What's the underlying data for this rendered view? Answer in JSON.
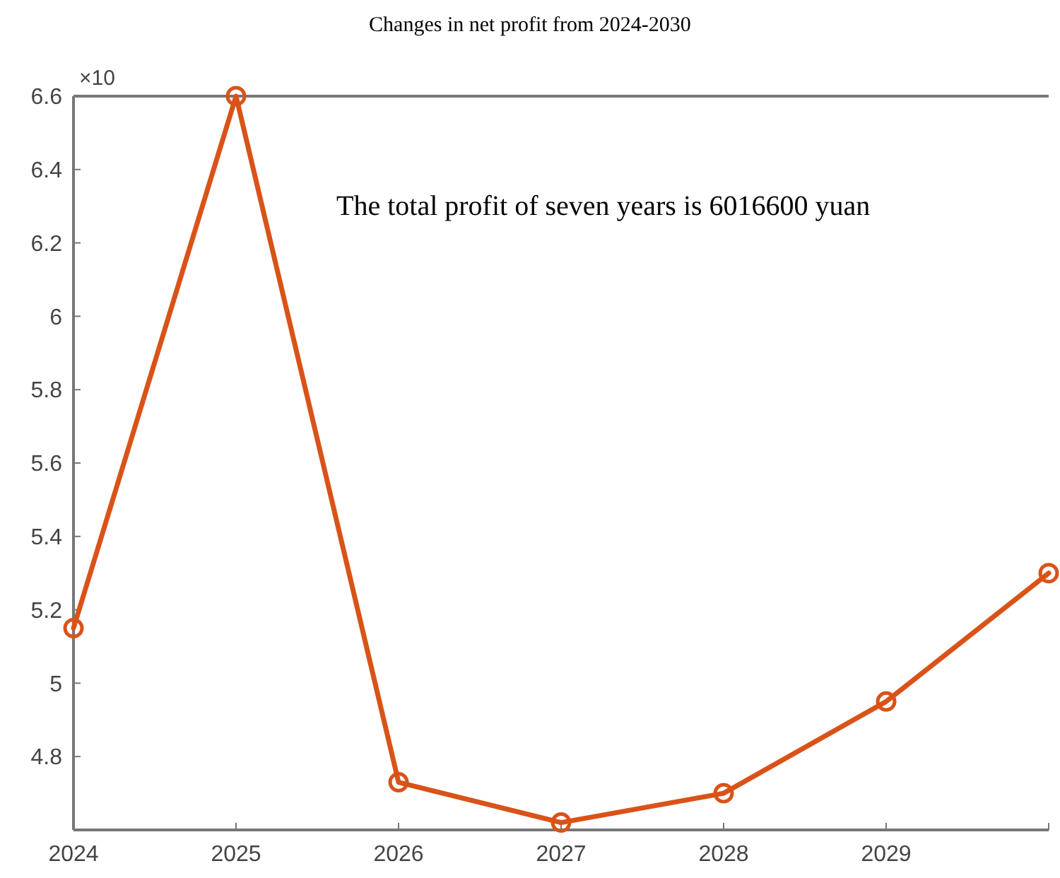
{
  "chart_data": {
    "type": "line",
    "title": "Changes in net profit from 2024-2030",
    "x": [
      2024,
      2025,
      2026,
      2027,
      2028,
      2029,
      2030
    ],
    "series": [
      {
        "color": "#d95319",
        "values": [
          5.15,
          6.6,
          4.73,
          4.62,
          4.7,
          4.95,
          5.3
        ]
      }
    ],
    "xlim": [
      2024,
      2030
    ],
    "xticks": [
      2024,
      2025,
      2026,
      2027,
      2028,
      2029,
      {
        "value": 2030,
        "label": null
      }
    ],
    "ylim": [
      4.6,
      6.6
    ],
    "yticks": [
      4.8,
      5,
      5.2,
      5.4,
      5.6,
      5.8,
      6,
      6.2,
      6.4,
      6.6
    ],
    "marker": "circle",
    "line_style": "solid",
    "grid": false,
    "annotations": [
      "×10",
      "The total profit of seven years is 6016600 yuan"
    ]
  }
}
